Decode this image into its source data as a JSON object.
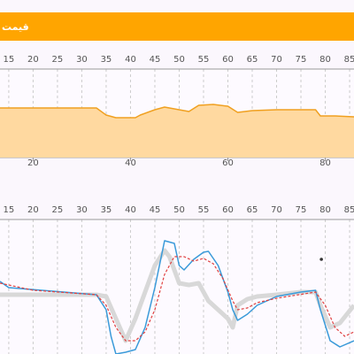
{
  "header": {
    "title": "قیمت"
  },
  "chart_data": [
    {
      "type": "area",
      "xlim": [
        13.2,
        85.9
      ],
      "ylim": [
        0,
        100
      ],
      "xticks": [
        15,
        20,
        25,
        30,
        35,
        40,
        45,
        50,
        55,
        60,
        65,
        70,
        75,
        80,
        85
      ],
      "x2ticks": [
        20,
        40,
        60,
        80
      ],
      "series": [
        {
          "color": "#f0a020",
          "fill": "#ffd9a0",
          "x": [
            13.2,
            20,
            30,
            33,
            35,
            37,
            41,
            42,
            45,
            47,
            50,
            52,
            54,
            57,
            60,
            62,
            65,
            70,
            78,
            79,
            82,
            85.9
          ],
          "values": [
            56,
            56,
            56,
            56,
            48,
            45,
            45,
            48,
            54,
            57,
            54,
            52,
            59,
            60,
            58,
            51,
            53,
            54,
            54,
            47,
            47,
            46
          ]
        }
      ]
    },
    {
      "type": "line",
      "xlim": [
        13.2,
        85.9
      ],
      "ylim": [
        0,
        152
      ],
      "xticks": [
        15,
        20,
        25,
        30,
        35,
        40,
        45,
        50,
        55,
        60,
        65,
        70,
        75,
        80,
        85
      ],
      "series": [
        {
          "color": "#d8d8d8",
          "width": 5,
          "dash": false,
          "x": [
            13.2,
            20,
            33,
            35,
            37,
            39,
            41,
            43,
            45,
            47,
            48,
            50,
            52,
            54,
            56,
            58,
            60,
            61,
            62,
            64,
            66,
            70,
            75,
            78,
            79,
            81,
            83,
            85.9
          ],
          "values": [
            67,
            67,
            67,
            65,
            40,
            15,
            40,
            70,
            100,
            117,
            110,
            80,
            78,
            80,
            60,
            50,
            40,
            30,
            55,
            62,
            65,
            67,
            70,
            70,
            55,
            30,
            35,
            55
          ]
        },
        {
          "color": "#3a9ad9",
          "width": 1.5,
          "dash": false,
          "x": [
            13.2,
            15,
            33,
            35,
            36,
            37,
            39,
            41,
            43,
            45,
            47,
            49,
            50,
            51,
            53,
            55,
            56,
            58,
            60,
            61,
            62,
            64,
            66,
            70,
            75,
            78,
            79,
            81,
            83,
            85.9
          ],
          "values": [
            82,
            75,
            67,
            50,
            20,
            0,
            2,
            5,
            30,
            75,
            128,
            125,
            100,
            95,
            107,
            115,
            116,
            100,
            70,
            50,
            38,
            45,
            55,
            65,
            70,
            72,
            50,
            15,
            8,
            15
          ]
        },
        {
          "color": "#e04040",
          "width": 1.2,
          "dash": true,
          "x": [
            13.2,
            15,
            20,
            33,
            35,
            37,
            39,
            41,
            43,
            45,
            47,
            49,
            51,
            53,
            55,
            57,
            59,
            61,
            62,
            64,
            66,
            70,
            78,
            80,
            82,
            84,
            85.9
          ],
          "values": [
            80,
            78,
            72,
            67,
            55,
            30,
            15,
            15,
            25,
            50,
            90,
            110,
            110,
            105,
            108,
            102,
            85,
            60,
            50,
            52,
            58,
            63,
            70,
            55,
            30,
            20,
            25
          ]
        }
      ],
      "points": [
        {
          "x": 79.2,
          "y": 107,
          "color": "#333"
        }
      ]
    }
  ]
}
